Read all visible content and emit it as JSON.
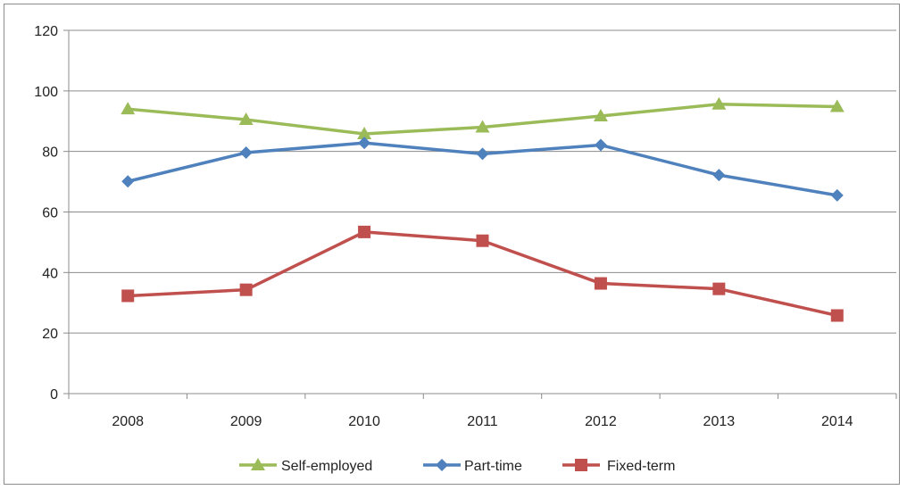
{
  "chart_data": {
    "type": "line",
    "title": "",
    "xlabel": "",
    "ylabel": "",
    "categories": [
      "2008",
      "2009",
      "2010",
      "2011",
      "2012",
      "2013",
      "2014"
    ],
    "ylim": [
      0,
      120
    ],
    "yticks": [
      0,
      20,
      40,
      60,
      80,
      100,
      120
    ],
    "grid": true,
    "legend_position": "bottom",
    "series": [
      {
        "name": "Self-employed",
        "color": "#9BBB59",
        "marker": "triangle",
        "values": [
          94,
          90.5,
          85.8,
          88,
          91.7,
          95.6,
          94.8
        ]
      },
      {
        "name": "Part-time",
        "color": "#4F81BD",
        "marker": "diamond",
        "values": [
          70.1,
          79.6,
          82.8,
          79.2,
          82.1,
          72.2,
          65.5
        ]
      },
      {
        "name": "Fixed-term",
        "color": "#C0504D",
        "marker": "square",
        "values": [
          32.3,
          34.3,
          53.4,
          50.5,
          36.4,
          34.6,
          25.8
        ]
      }
    ]
  }
}
